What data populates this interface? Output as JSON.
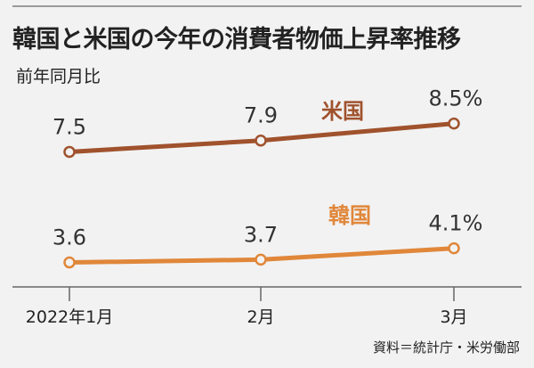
{
  "header": {
    "title": "韓国と米国の今年の消費者物価上昇率推移",
    "unit_label": "前年同月比"
  },
  "footer": {
    "source": "資料＝統計庁・米労働部"
  },
  "chart_data": {
    "type": "line",
    "title": "韓国と米国の今年の消費者物価上昇率推移",
    "subtitle": "前年同月比",
    "categories": [
      "2022年1月",
      "2月",
      "3月"
    ],
    "series": [
      {
        "name": "米国",
        "values": [
          7.5,
          7.9,
          8.5
        ],
        "labels": [
          "7.5",
          "7.9",
          "8.5%"
        ],
        "color": "#a0522d"
      },
      {
        "name": "韓国",
        "values": [
          3.6,
          3.7,
          4.1
        ],
        "labels": [
          "3.6",
          "3.7",
          "4.1%"
        ],
        "color": "#e0873a"
      }
    ],
    "ylim": [
      2.8,
      9.4
    ],
    "grid": false,
    "legend": "inline-labels",
    "axis_color": "#666666"
  }
}
